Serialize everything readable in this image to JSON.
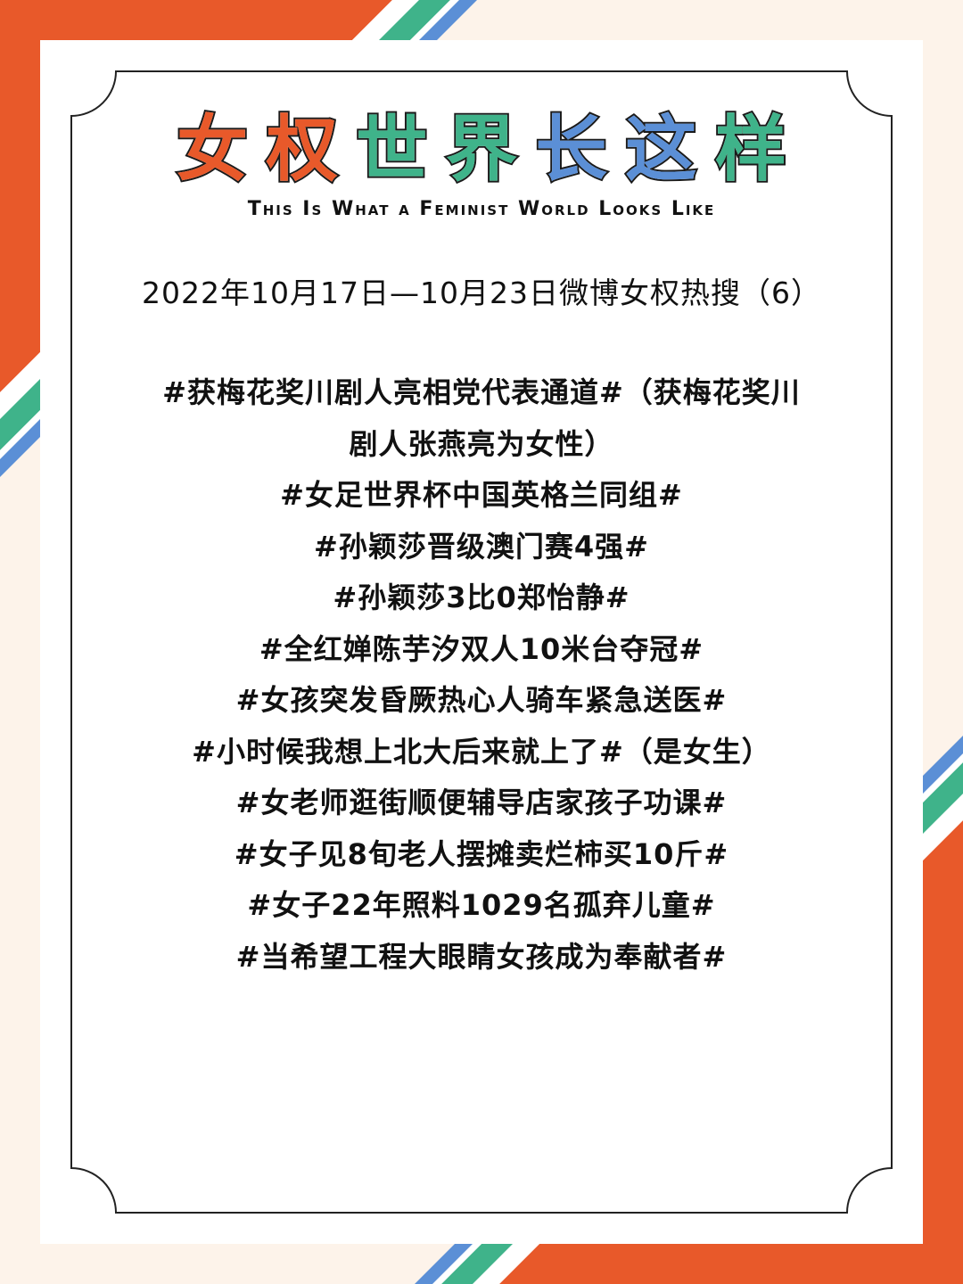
{
  "colors": {
    "orange": "#e8592a",
    "green": "#3fb38a",
    "blue": "#5b8fd6",
    "background": "#fdf3ea",
    "card": "#ffffff",
    "text": "#111111"
  },
  "title": {
    "chars": [
      {
        "char": "女",
        "color": "#e8592a"
      },
      {
        "char": "权",
        "color": "#e8592a"
      },
      {
        "char": "世",
        "color": "#3fb38a"
      },
      {
        "char": "界",
        "color": "#3fb38a"
      },
      {
        "char": "长",
        "color": "#5b8fd6"
      },
      {
        "char": "这",
        "color": "#5b8fd6"
      },
      {
        "char": "样",
        "color": "#3fb38a"
      }
    ],
    "subtitle": "This Is What a Feminist World Looks Like"
  },
  "date_line": "2022年10月17日—10月23日微博女权热搜（6）",
  "items": [
    "#获梅花奖川剧人亮相党代表通道#（获梅花奖川",
    "剧人张燕亮为女性）",
    "#女足世界杯中国英格兰同组#",
    "#孙颖莎晋级澳门赛4强#",
    "#孙颖莎3比0郑怡静#",
    "#全红婵陈芋汐双人10米台夺冠#",
    "#女孩突发昏厥热心人骑车紧急送医#",
    "#小时候我想上北大后来就上了#（是女生）",
    "#女老师逛街顺便辅导店家孩子功课#",
    "#女子见8旬老人摆摊卖烂柿买10斤#",
    "#女子22年照料1029名孤弃儿童#",
    "#当希望工程大眼睛女孩成为奉献者#"
  ]
}
